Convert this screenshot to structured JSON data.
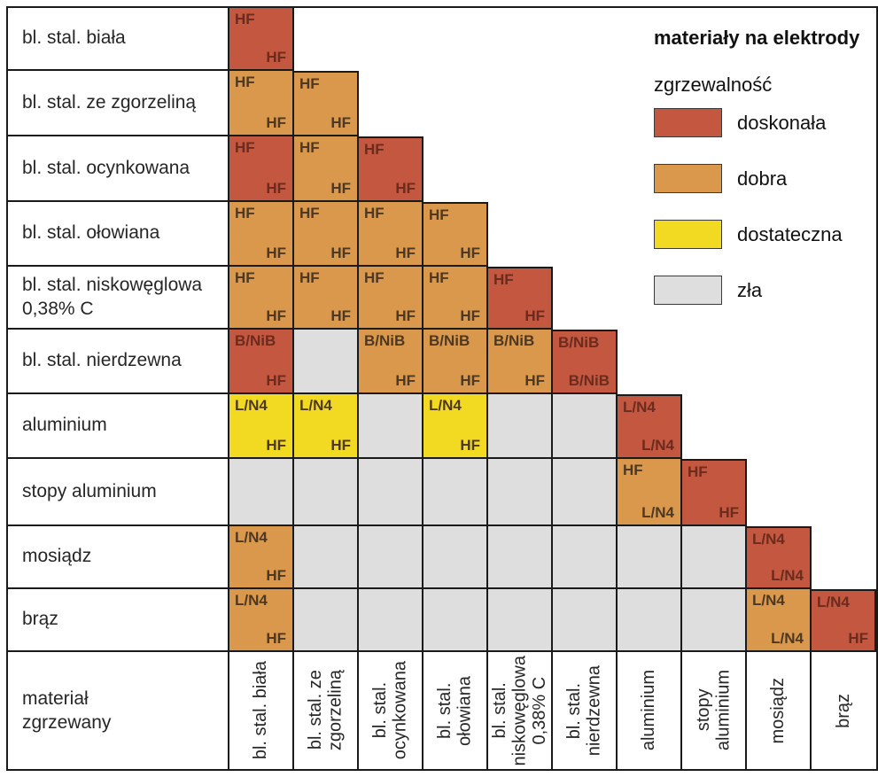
{
  "title": "materiały na elektrody",
  "legend": {
    "subtitle": "zgrzewalność",
    "items": [
      {
        "label": "doskonała",
        "rating": "doskonała",
        "color": "#c3573f"
      },
      {
        "label": "dobra",
        "rating": "dobra",
        "color": "#d9984c"
      },
      {
        "label": "dostateczna",
        "rating": "dostateczna",
        "color": "#f3da22"
      },
      {
        "label": "zła",
        "rating": "zła",
        "color": "#dedede"
      }
    ]
  },
  "corner_label": {
    "lines": [
      "materiał",
      "zgrzewany"
    ]
  },
  "colors": {
    "grid_line": "#1a1a1a",
    "code_text": "#4d3823",
    "code_text_on_red": "#6b2b1e",
    "label_text": "#262626"
  },
  "chart_data": {
    "type": "heatmap",
    "title": "materiały na elektrody",
    "legend_title": "zgrzewalność",
    "rating_colors": {
      "doskonała": "#c3573f",
      "dobra": "#d9984c",
      "dostateczna": "#f3da22",
      "zła": "#dedede"
    },
    "materials": [
      "bl. stal. biała",
      "bl. stal. ze zgorzeliną",
      "bl. stal. ocynkowana",
      "bl. stal. ołowiana",
      "bl. stal. niskowęglowa 0,38% C",
      "bl. stal. nierdzewna",
      "aluminium",
      "stopy aluminium",
      "mosiądz",
      "brąz"
    ],
    "row_label_lines": [
      [
        "bl. stal. biała"
      ],
      [
        "bl. stal. ze zgorzeliną"
      ],
      [
        "bl. stal. ocynkowana"
      ],
      [
        "bl. stal. ołowiana"
      ],
      [
        "bl. stal. niskowęglowa",
        "0,38% C"
      ],
      [
        "bl. stal. nierdzewna"
      ],
      [
        "aluminium"
      ],
      [
        "stopy aluminium"
      ],
      [
        "mosiądz"
      ],
      [
        "brąz"
      ]
    ],
    "col_label_lines": [
      [
        "bl. stal. biała"
      ],
      [
        "bl. stal. ze",
        "zgorzeliną"
      ],
      [
        "bl. stal.",
        "ocynkowana"
      ],
      [
        "bl. stal.",
        "ołowiana"
      ],
      [
        "bl. stal.",
        "niskowęglowa",
        "0,38% C"
      ],
      [
        "bl. stal.",
        "nierdzewna"
      ],
      [
        "aluminium"
      ],
      [
        "stopy",
        "aluminium"
      ],
      [
        "mosiądz"
      ],
      [
        "brąz"
      ]
    ],
    "matrix": [
      [
        {
          "rating": "doskonała",
          "top": "HF",
          "bottom": "HF"
        }
      ],
      [
        {
          "rating": "dobra",
          "top": "HF",
          "bottom": "HF"
        },
        {
          "rating": "dobra",
          "top": "HF",
          "bottom": "HF"
        }
      ],
      [
        {
          "rating": "doskonała",
          "top": "HF",
          "bottom": "HF"
        },
        {
          "rating": "dobra",
          "top": "HF",
          "bottom": "HF"
        },
        {
          "rating": "doskonała",
          "top": "HF",
          "bottom": "HF"
        }
      ],
      [
        {
          "rating": "dobra",
          "top": "HF",
          "bottom": "HF"
        },
        {
          "rating": "dobra",
          "top": "HF",
          "bottom": "HF"
        },
        {
          "rating": "dobra",
          "top": "HF",
          "bottom": "HF"
        },
        {
          "rating": "dobra",
          "top": "HF",
          "bottom": "HF"
        }
      ],
      [
        {
          "rating": "dobra",
          "top": "HF",
          "bottom": "HF"
        },
        {
          "rating": "dobra",
          "top": "HF",
          "bottom": "HF"
        },
        {
          "rating": "dobra",
          "top": "HF",
          "bottom": "HF"
        },
        {
          "rating": "dobra",
          "top": "HF",
          "bottom": "HF"
        },
        {
          "rating": "doskonała",
          "top": "HF",
          "bottom": "HF"
        }
      ],
      [
        {
          "rating": "doskonała",
          "top": "B/NiB",
          "bottom": "HF"
        },
        {
          "rating": "zła"
        },
        {
          "rating": "dobra",
          "top": "B/NiB",
          "bottom": "HF"
        },
        {
          "rating": "dobra",
          "top": "B/NiB",
          "bottom": "HF"
        },
        {
          "rating": "dobra",
          "top": "B/NiB",
          "bottom": "HF"
        },
        {
          "rating": "doskonała",
          "top": "B/NiB",
          "bottom": "B/NiB"
        }
      ],
      [
        {
          "rating": "dostateczna",
          "top": "L/N4",
          "bottom": "HF"
        },
        {
          "rating": "dostateczna",
          "top": "L/N4",
          "bottom": "HF"
        },
        {
          "rating": "zła"
        },
        {
          "rating": "dostateczna",
          "top": "L/N4",
          "bottom": "HF"
        },
        {
          "rating": "zła"
        },
        {
          "rating": "zła"
        },
        {
          "rating": "doskonała",
          "top": "L/N4",
          "bottom": "L/N4"
        }
      ],
      [
        {
          "rating": "zła"
        },
        {
          "rating": "zła"
        },
        {
          "rating": "zła"
        },
        {
          "rating": "zła"
        },
        {
          "rating": "zła"
        },
        {
          "rating": "zła"
        },
        {
          "rating": "dobra",
          "top": "HF",
          "bottom": "L/N4"
        },
        {
          "rating": "doskonała",
          "top": "HF",
          "bottom": "HF"
        }
      ],
      [
        {
          "rating": "dobra",
          "top": "L/N4",
          "bottom": "HF"
        },
        {
          "rating": "zła"
        },
        {
          "rating": "zła"
        },
        {
          "rating": "zła"
        },
        {
          "rating": "zła"
        },
        {
          "rating": "zła"
        },
        {
          "rating": "zła"
        },
        {
          "rating": "zła"
        },
        {
          "rating": "doskonała",
          "top": "L/N4",
          "bottom": "L/N4"
        }
      ],
      [
        {
          "rating": "dobra",
          "top": "L/N4",
          "bottom": "HF"
        },
        {
          "rating": "zła"
        },
        {
          "rating": "zła"
        },
        {
          "rating": "zła"
        },
        {
          "rating": "zła"
        },
        {
          "rating": "zła"
        },
        {
          "rating": "zła"
        },
        {
          "rating": "zła"
        },
        {
          "rating": "dobra",
          "top": "L/N4",
          "bottom": "L/N4"
        },
        {
          "rating": "doskonała",
          "top": "L/N4",
          "bottom": "HF"
        }
      ]
    ]
  }
}
